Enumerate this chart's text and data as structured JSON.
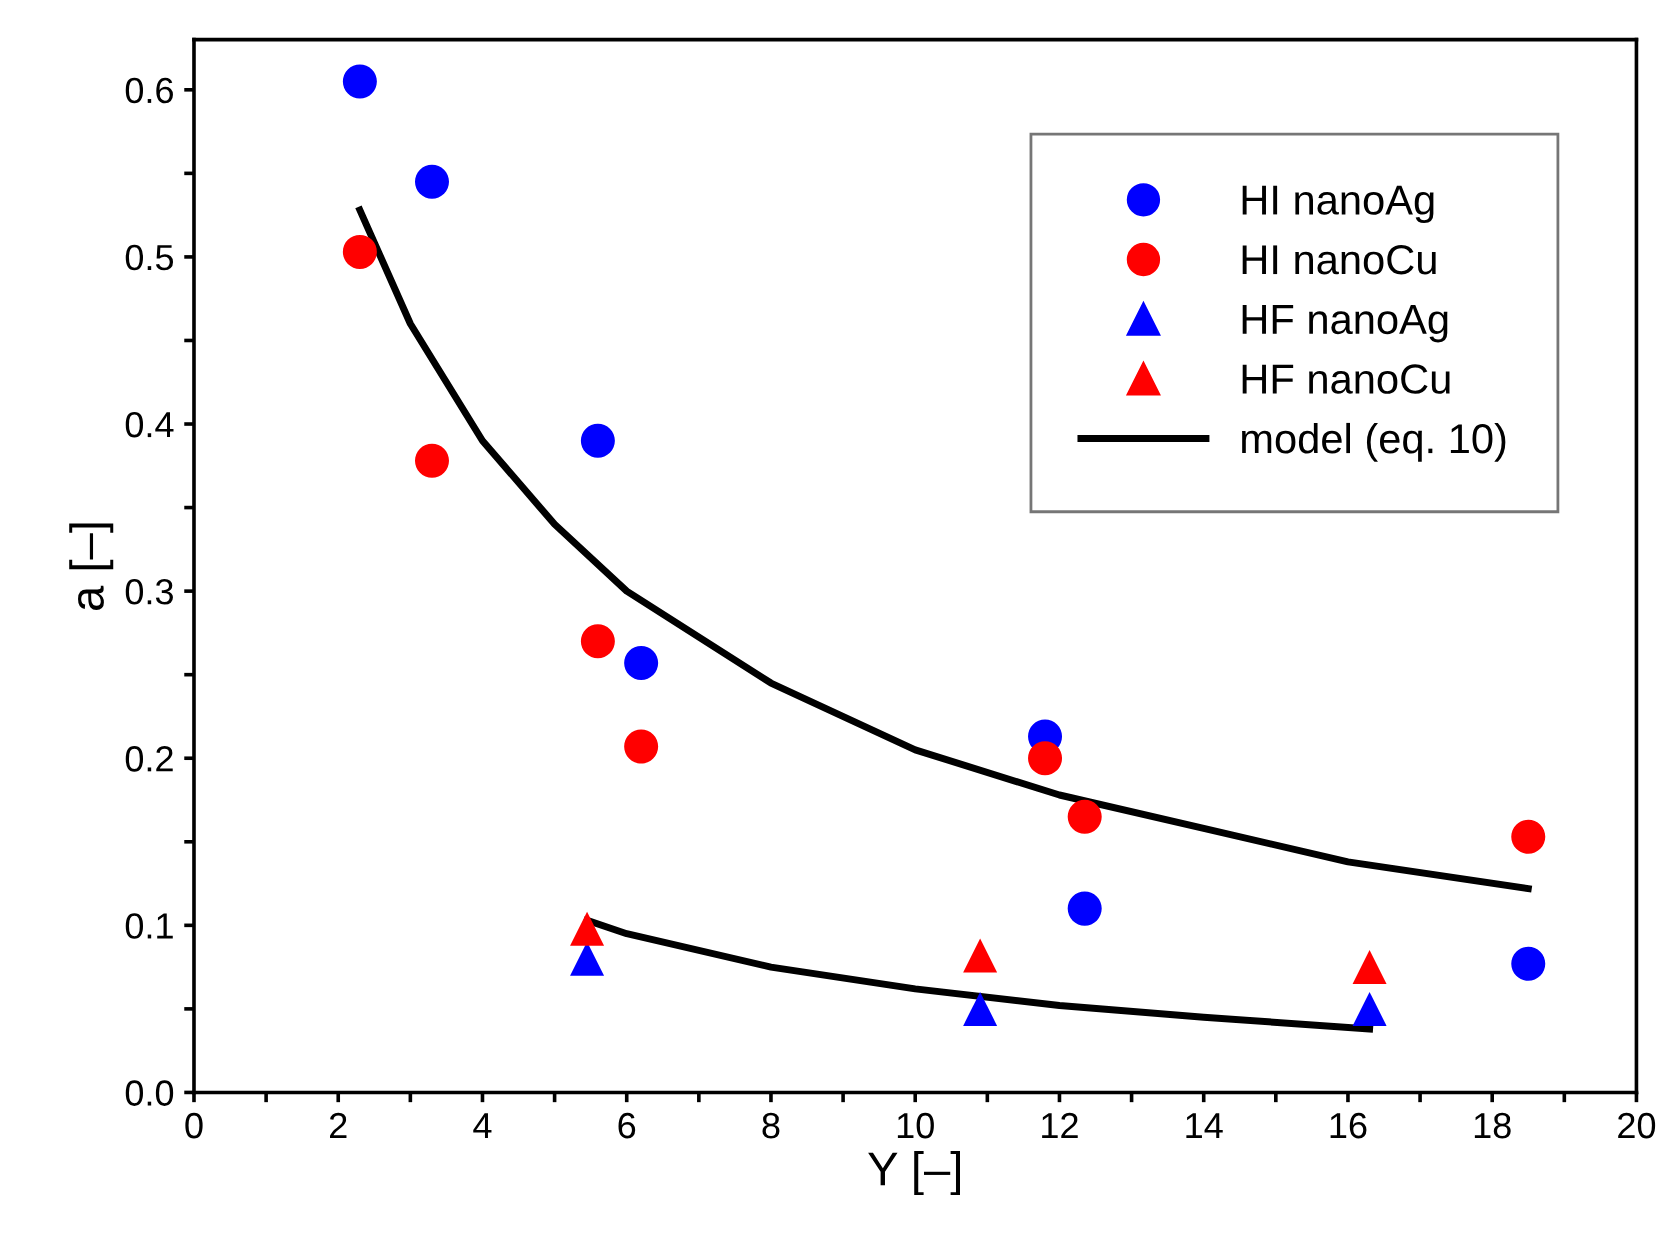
{
  "chart_data": {
    "type": "scatter",
    "xlabel": "Y [–]",
    "ylabel": "a [–]",
    "xlim": [
      0,
      20
    ],
    "ylim": [
      0,
      0.63
    ],
    "xticks": [
      0,
      {
        "value": 1,
        "label": null
      },
      2,
      {
        "value": 3,
        "label": null
      },
      4,
      {
        "value": 5,
        "label": null
      },
      6,
      {
        "value": 7,
        "label": null
      },
      8,
      {
        "value": 9,
        "label": null
      },
      10,
      {
        "value": 11,
        "label": null
      },
      12,
      {
        "value": 13,
        "label": null
      },
      14,
      {
        "value": 15,
        "label": null
      },
      16,
      {
        "value": 17,
        "label": null
      },
      18,
      {
        "value": 19,
        "label": null
      },
      20
    ],
    "yticks": [
      {
        "value": 0,
        "label": "0.0"
      },
      {
        "value": 0.05,
        "label": null
      },
      0.1,
      {
        "value": 0.15,
        "label": null
      },
      0.2,
      {
        "value": 0.25,
        "label": null
      },
      0.3,
      {
        "value": 0.35,
        "label": null
      },
      0.4,
      {
        "value": 0.45,
        "label": null
      },
      0.5,
      {
        "value": 0.55,
        "label": null
      },
      0.6
    ],
    "grid": false,
    "legend": "top right",
    "series": [
      {
        "name": "HI nanoAg",
        "color": "#0000ff",
        "marker": "circle",
        "x": [
          2.3,
          3.3,
          5.6,
          6.2,
          11.8,
          12.35,
          18.5
        ],
        "values": [
          0.605,
          0.545,
          0.39,
          0.257,
          0.213,
          0.11,
          0.077
        ]
      },
      {
        "name": "HI nanoCu",
        "color": "#ff0000",
        "marker": "circle",
        "x": [
          2.3,
          3.3,
          5.6,
          6.2,
          11.8,
          12.35,
          18.5
        ],
        "values": [
          0.503,
          0.378,
          0.27,
          0.207,
          0.2,
          0.165,
          0.153
        ]
      },
      {
        "name": "HF nanoAg",
        "color": "#0000ff",
        "marker": "triangle",
        "x": [
          5.45,
          10.9,
          16.3
        ],
        "values": [
          0.08,
          0.05,
          0.05
        ]
      },
      {
        "name": "HF nanoCu",
        "color": "#ff0000",
        "marker": "triangle",
        "x": [
          5.45,
          10.9,
          16.3
        ],
        "values": [
          0.098,
          0.082,
          0.075
        ]
      },
      {
        "name": "model (eq. 10)",
        "type": "line",
        "color": "#000000",
        "marker": "none",
        "line_style": "solid",
        "x": [
          2.3,
          3,
          4,
          5,
          6,
          8,
          10,
          12,
          14,
          16,
          18.5
        ],
        "values": [
          0.528,
          0.46,
          0.39,
          0.34,
          0.3,
          0.245,
          0.205,
          0.178,
          0.158,
          0.138,
          0.122
        ]
      },
      {
        "type": "line",
        "color": "#000000",
        "marker": "none",
        "line_style": "solid",
        "x": [
          5.45,
          6,
          8,
          10,
          12,
          14,
          16.3
        ],
        "values": [
          0.103,
          0.095,
          0.075,
          0.062,
          0.052,
          0.045,
          0.038
        ]
      }
    ]
  }
}
